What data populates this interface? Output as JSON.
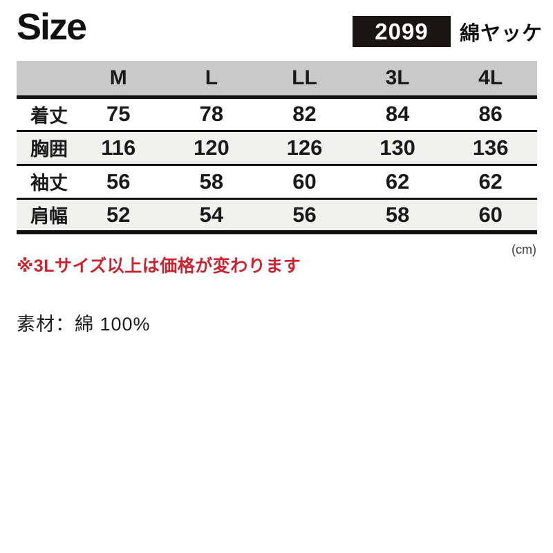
{
  "page": {
    "title": "Size",
    "product_code": "2099",
    "product_name": "綿ヤッケ",
    "unit_label": "(cm)",
    "price_note": "※3Lサイズ以上は価格が変わります",
    "material": "素材：綿 100%"
  },
  "chart_data": {
    "type": "table",
    "title": "Size",
    "columns": [
      "M",
      "L",
      "LL",
      "3L",
      "4L"
    ],
    "rows": [
      {
        "label": "着丈",
        "values": [
          "75",
          "78",
          "82",
          "84",
          "86"
        ]
      },
      {
        "label": "胸囲",
        "values": [
          "116",
          "120",
          "126",
          "130",
          "136"
        ]
      },
      {
        "label": "袖丈",
        "values": [
          "56",
          "58",
          "60",
          "62",
          "62"
        ]
      },
      {
        "label": "肩幅",
        "values": [
          "52",
          "54",
          "56",
          "58",
          "60"
        ]
      }
    ],
    "unit": "cm"
  },
  "colors": {
    "header_bg": "#c9c9c9",
    "row_alt_bg": "#f0f0ee",
    "badge_bg": "#1a1512",
    "badge_text": "#ffffff",
    "note_red": "#c92430",
    "text": "#1a1a1a"
  }
}
